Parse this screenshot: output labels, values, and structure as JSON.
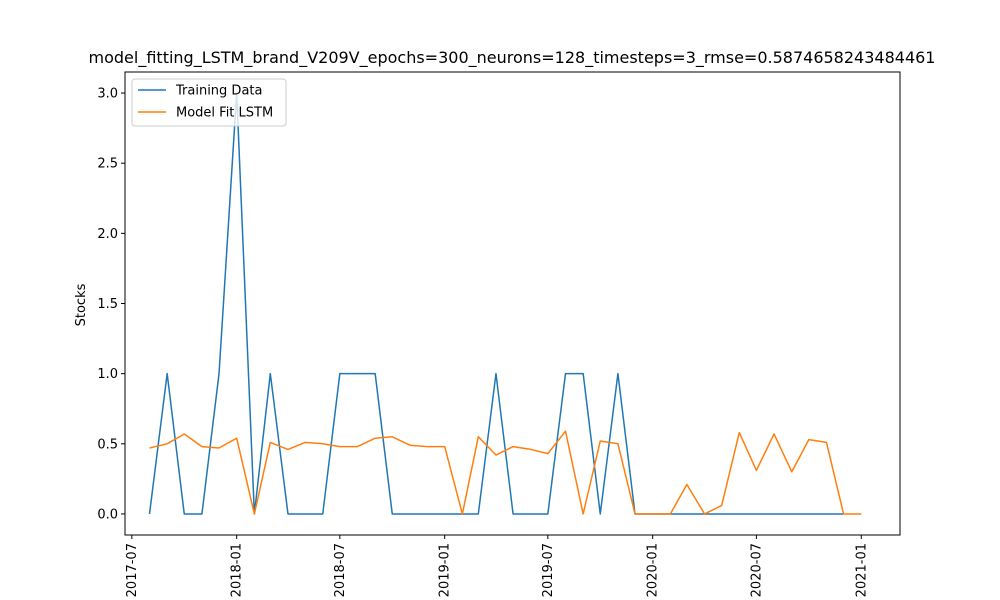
{
  "chart_data": {
    "type": "line",
    "title": "model_fitting_LSTM_brand_V209V_epochs=300_neurons=128_timesteps=3_rmse=0.5874658243484461",
    "xlabel": "",
    "ylabel": "Stocks",
    "xlim": [
      "2017-06-19",
      "2021-03-10"
    ],
    "ylim": [
      -0.15,
      3.15
    ],
    "grid": false,
    "legend_position": "upper left",
    "x_ticks": [
      "2017-07",
      "2018-01",
      "2018-07",
      "2019-01",
      "2019-07",
      "2020-01",
      "2020-07",
      "2021-01"
    ],
    "y_ticks": [
      "0.0",
      "0.5",
      "1.0",
      "1.5",
      "2.0",
      "2.5",
      "3.0"
    ],
    "x": [
      "2017-08",
      "2017-09",
      "2017-10",
      "2017-11",
      "2017-12",
      "2018-01",
      "2018-02",
      "2018-03",
      "2018-04",
      "2018-05",
      "2018-06",
      "2018-07",
      "2018-08",
      "2018-09",
      "2018-10",
      "2018-11",
      "2018-12",
      "2019-01",
      "2019-02",
      "2019-03",
      "2019-04",
      "2019-05",
      "2019-06",
      "2019-07",
      "2019-08",
      "2019-09",
      "2019-10",
      "2019-11",
      "2019-12",
      "2020-01",
      "2020-02",
      "2020-03",
      "2020-04",
      "2020-05",
      "2020-06",
      "2020-07",
      "2020-08",
      "2020-09",
      "2020-10",
      "2020-11",
      "2020-12",
      "2021-01"
    ],
    "series": [
      {
        "name": "Training Data",
        "color": "#1f77b4",
        "values": [
          0,
          1,
          0,
          0,
          1,
          3,
          0,
          1,
          0,
          0,
          0,
          1,
          1,
          1,
          0,
          0,
          0,
          0,
          0,
          0,
          1,
          0,
          0,
          0,
          1,
          1,
          0,
          1,
          0,
          0,
          0,
          0,
          0,
          0,
          0,
          0,
          0,
          0,
          0,
          0,
          0,
          null
        ]
      },
      {
        "name": "Model Fit LSTM",
        "color": "#ff7f0e",
        "values": [
          0.47,
          0.5,
          0.57,
          0.48,
          0.47,
          0.54,
          0.0,
          0.51,
          0.46,
          0.51,
          0.5,
          0.48,
          0.48,
          0.54,
          0.55,
          0.49,
          0.48,
          0.48,
          0.0,
          0.55,
          0.42,
          0.48,
          0.46,
          0.43,
          0.59,
          0.0,
          0.52,
          0.5,
          0.0,
          0.0,
          0.0,
          0.21,
          0.0,
          0.06,
          0.58,
          0.31,
          0.57,
          0.3,
          0.53,
          0.51,
          0.0,
          0.0
        ]
      }
    ]
  }
}
